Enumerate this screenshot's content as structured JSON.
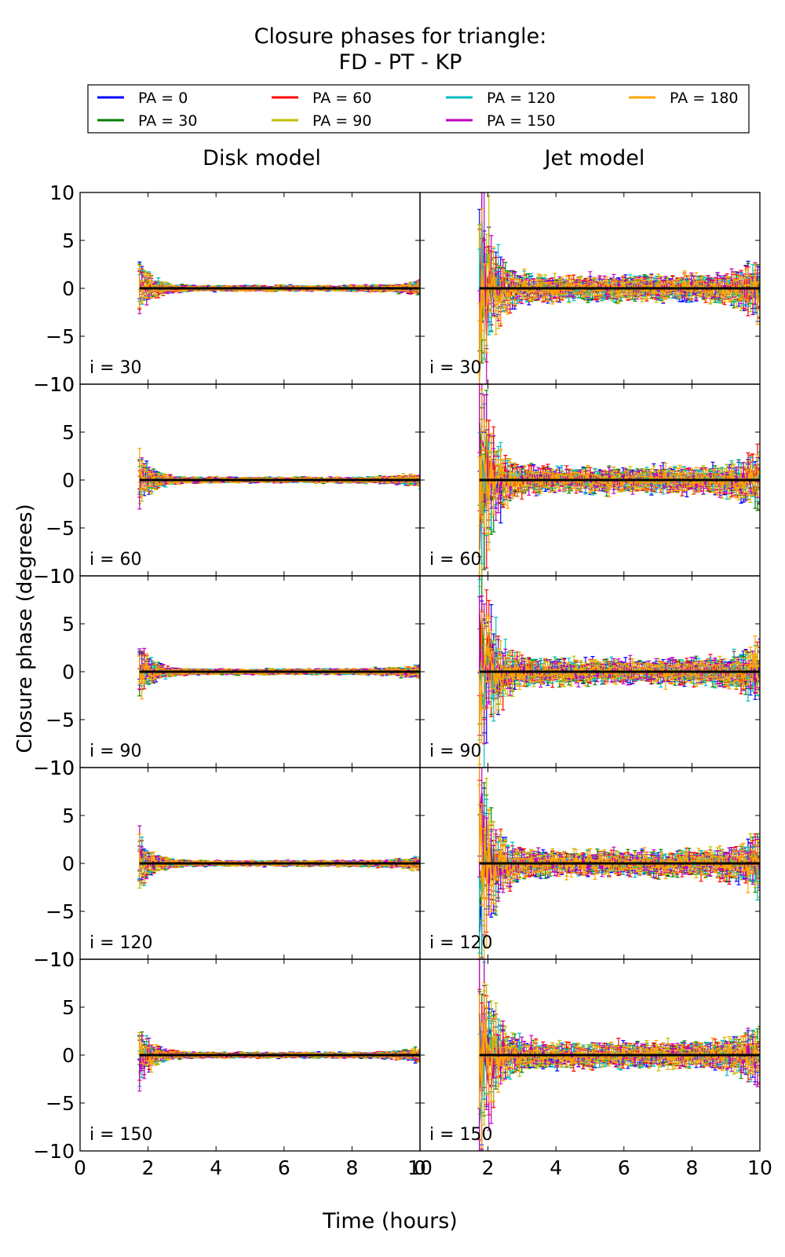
{
  "chart_data": {
    "type": "line",
    "title_lines": [
      "Closure phases for triangle:",
      "FD - PT - KP"
    ],
    "xlabel": "Time (hours)",
    "ylabel": "Closure phase (degrees)",
    "xlim": [
      0,
      10
    ],
    "ylim": [
      -10,
      10
    ],
    "xticks": [
      0,
      2,
      4,
      6,
      8,
      10
    ],
    "yticks": [
      -10,
      -5,
      0,
      5,
      10
    ],
    "grid": false,
    "legend_placement": "top, above panels, 4 columns",
    "columns": [
      {
        "title": "Disk model",
        "noise": 0.35
      },
      {
        "title": "Jet model",
        "noise": 1.6
      }
    ],
    "rows": [
      {
        "label": "i = 30"
      },
      {
        "label": "i = 60"
      },
      {
        "label": "i = 90"
      },
      {
        "label": "i = 120"
      },
      {
        "label": "i = 150"
      }
    ],
    "time_range": [
      1.75,
      10.0
    ],
    "zero_line": {
      "y": 0,
      "color": "#000000"
    },
    "series": [
      {
        "name": "PA = 0",
        "color": "#0000ff"
      },
      {
        "name": "PA = 30",
        "color": "#008000"
      },
      {
        "name": "PA = 60",
        "color": "#ff0000"
      },
      {
        "name": "PA = 90",
        "color": "#bfbf00"
      },
      {
        "name": "PA = 120",
        "color": "#00bfbf"
      },
      {
        "name": "PA = 150",
        "color": "#bf00bf"
      },
      {
        "name": "PA = 180",
        "color": "#ffa500"
      }
    ]
  }
}
